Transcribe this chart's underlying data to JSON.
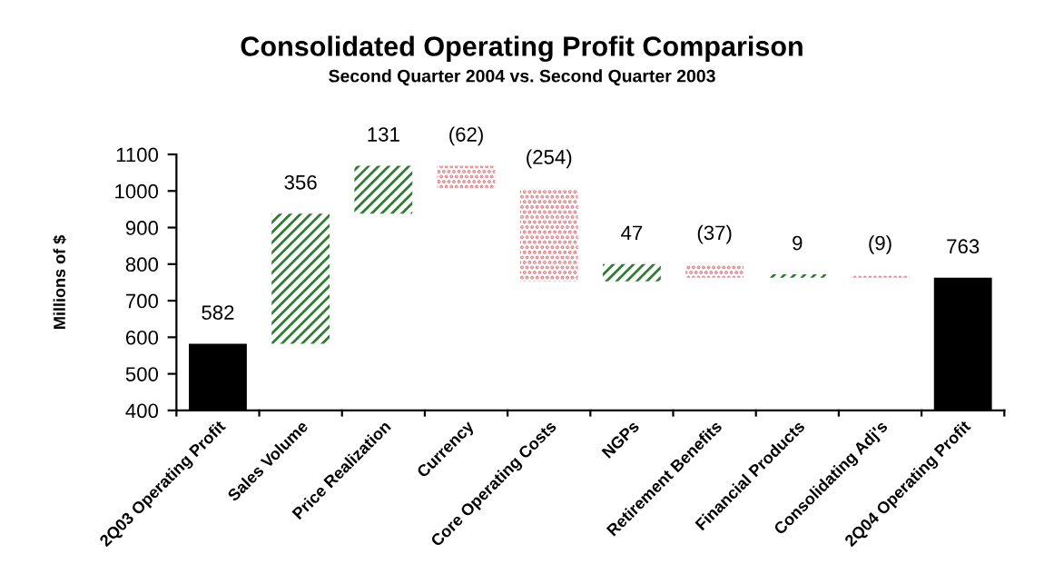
{
  "chart_data": {
    "type": "bar",
    "title": "Consolidated Operating Profit Comparison",
    "subtitle": "Second Quarter 2004 vs. Second Quarter 2003",
    "ylabel": "Millions of $",
    "categories": [
      "2Q03 Operating Profit",
      "Sales Volume",
      "Price Realization",
      "Currency",
      "Core Operating Costs",
      "NGPs",
      "Retirement Benefits",
      "Financial Products",
      "Consolidating Adj's",
      "2Q04 Operating Profit"
    ],
    "values": [
      582,
      356,
      131,
      -62,
      -254,
      47,
      -37,
      9,
      -9,
      763
    ],
    "base": [
      null,
      582,
      938,
      1069,
      1007,
      753,
      800,
      763,
      772,
      null
    ],
    "value_labels": [
      "582",
      "356",
      "131",
      "(62)",
      "(254)",
      "47",
      "(37)",
      "9",
      "(9)",
      "763"
    ],
    "colors": [
      "#000000",
      "#2e7d32",
      "#2e7d32",
      "#e07f86",
      "#e07f86",
      "#2e7d32",
      "#e07f86",
      "#2e7d32",
      "#e07f86",
      "#000000"
    ],
    "ylim": [
      400,
      1100
    ],
    "yticks": [
      400,
      500,
      600,
      700,
      800,
      900,
      1000,
      1100
    ],
    "grid": false,
    "legend": false
  }
}
